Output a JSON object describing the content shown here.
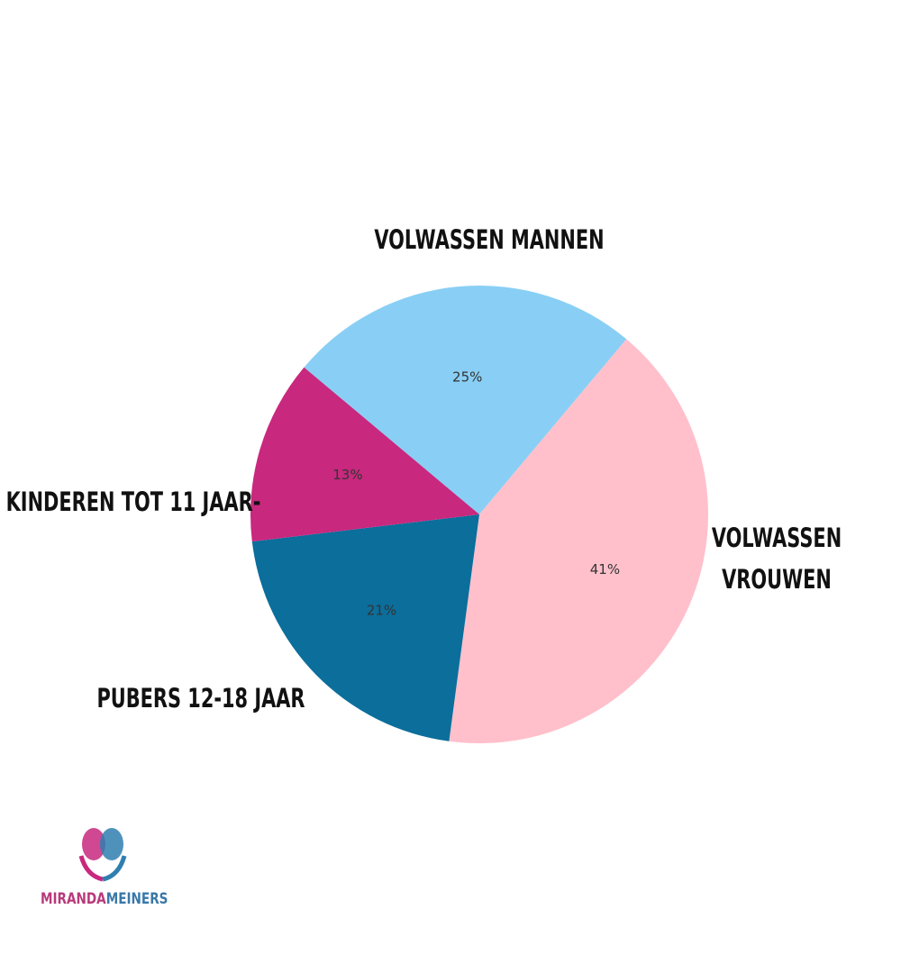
{
  "chart_data": {
    "type": "pie",
    "categories": [
      "VOLWASSEN MANNEN",
      "VOLWASSEN VROUWEN",
      "PUBERS 12-18 JAAR",
      "KINDEREN TOT 11 JAAR-"
    ],
    "values": [
      25,
      41,
      21,
      13
    ],
    "value_labels": [
      "25%",
      "41%",
      "21%",
      "13%"
    ],
    "colors": [
      "#89cff5",
      "#ffc0cb",
      "#0b6e9b",
      "#c8287e"
    ]
  },
  "logo": {
    "first": "MIRANDA",
    "second": "MEINERS"
  }
}
